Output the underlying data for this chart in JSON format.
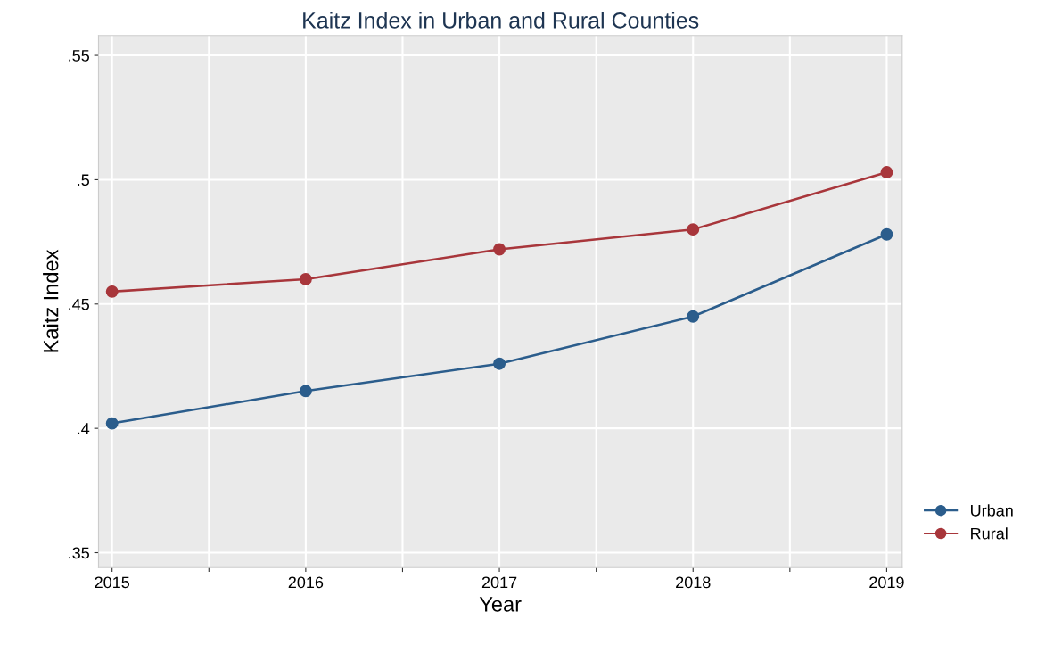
{
  "chart_data": {
    "type": "line",
    "title": "Kaitz Index in Urban and Rural Counties",
    "xlabel": "Year",
    "ylabel": "Kaitz Index",
    "x": [
      2015,
      2016,
      2017,
      2018,
      2019
    ],
    "series": [
      {
        "name": "Urban",
        "color": "#2b5d8c",
        "values": [
          0.402,
          0.415,
          0.426,
          0.445,
          0.478
        ]
      },
      {
        "name": "Rural",
        "color": "#a8363b",
        "values": [
          0.455,
          0.46,
          0.472,
          0.48,
          0.503
        ]
      }
    ],
    "xlim": [
      2014.93,
      2019.08
    ],
    "xticks": [
      2015,
      {
        "value": 2015.5,
        "label": null
      },
      2016,
      {
        "value": 2016.5,
        "label": null
      },
      2017,
      {
        "value": 2017.5,
        "label": null
      },
      2018,
      {
        "value": 2018.5,
        "label": null
      },
      2019
    ],
    "ylim": [
      0.344,
      0.558
    ],
    "yticks": [
      {
        "value": 0.35,
        "label": ".35"
      },
      {
        "value": 0.4,
        "label": ".4"
      },
      {
        "value": 0.45,
        "label": ".45"
      },
      {
        "value": 0.5,
        "label": ".5"
      },
      {
        "value": 0.55,
        "label": ".55"
      }
    ],
    "grid": true,
    "legend": "bottom right",
    "marker": "circle",
    "line_style": "solid"
  }
}
